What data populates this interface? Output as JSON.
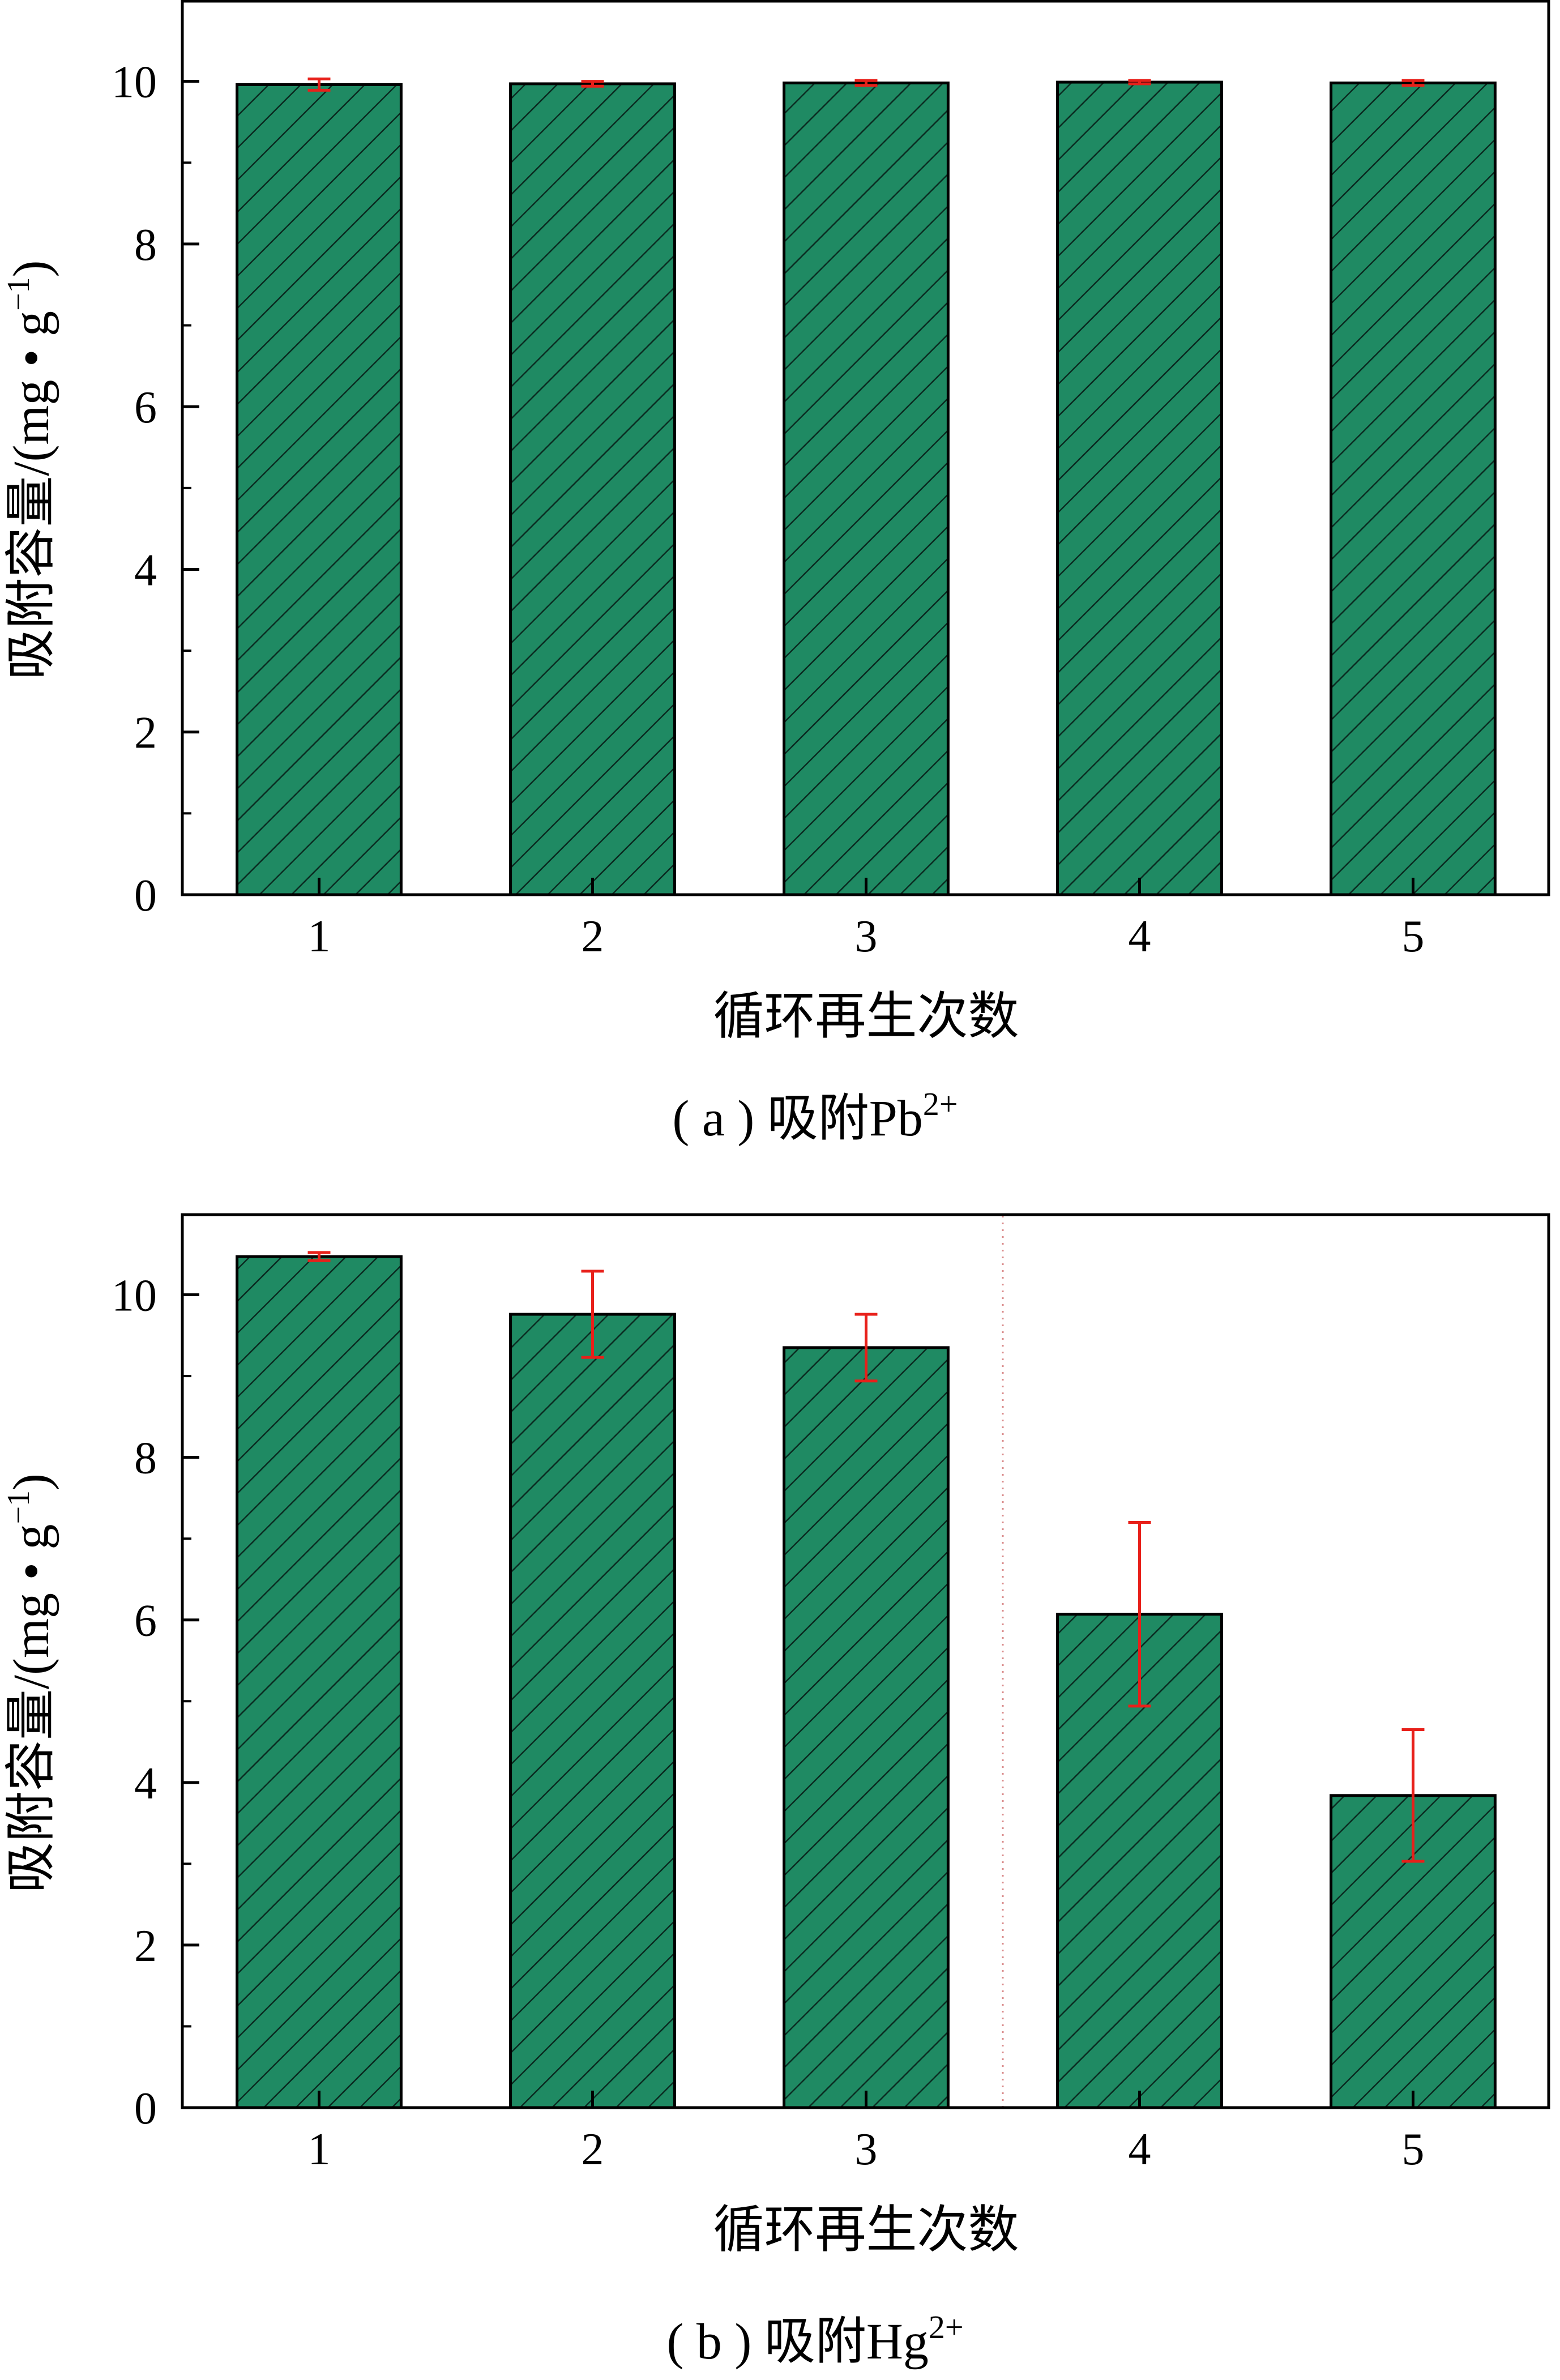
{
  "chart_data": [
    {
      "type": "bar",
      "caption": "( a ) 吸附Pb²⁺",
      "caption_parts": {
        "prefix": "( a ) 吸附Pb",
        "sup": "2+"
      },
      "categories": [
        "1",
        "2",
        "3",
        "4",
        "5"
      ],
      "values": [
        9.96,
        9.97,
        9.98,
        9.99,
        9.98
      ],
      "errors": [
        0.07,
        0.03,
        0.03,
        0.02,
        0.03
      ],
      "ylabel": "吸附容量/(mg • g",
      "ylabel_sup": "−1",
      "ylabel_end": ")",
      "xlabel": "循环再生次数",
      "ylim": [
        0,
        11
      ],
      "yticks": [
        "0",
        "2",
        "4",
        "6",
        "8",
        "10"
      ],
      "grid": false,
      "bar_color": "#1f8a63",
      "error_color": "#e8201a",
      "hatch": "diagonal"
    },
    {
      "type": "bar",
      "caption": "( b ) 吸附Hg²⁺",
      "caption_parts": {
        "prefix": "( b ) 吸附Hg",
        "sup": "2+"
      },
      "categories": [
        "1",
        "2",
        "3",
        "4",
        "5"
      ],
      "values": [
        10.47,
        9.76,
        9.35,
        6.07,
        3.84
      ],
      "errors": [
        0.05,
        0.53,
        0.41,
        1.13,
        0.81
      ],
      "ylabel": "吸附容量/(mg • g",
      "ylabel_sup": "−1",
      "ylabel_end": ")",
      "xlabel": "循环再生次数",
      "ylim": [
        0,
        11
      ],
      "yticks": [
        "0",
        "2",
        "4",
        "6",
        "8",
        "10"
      ],
      "grid": false,
      "bar_color": "#1f8a63",
      "error_color": "#e8201a",
      "hatch": "diagonal"
    }
  ]
}
